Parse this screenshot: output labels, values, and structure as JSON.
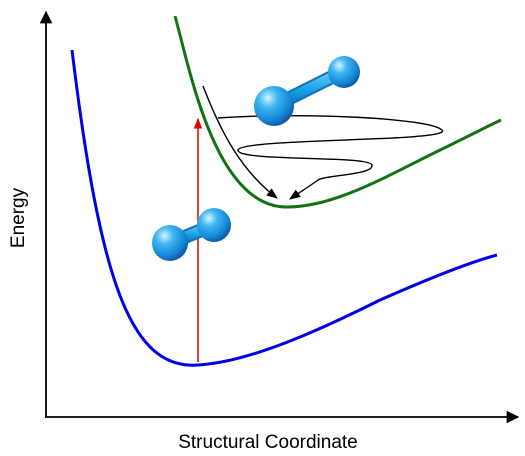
{
  "axes": {
    "xlabel": "Structural Coordinate",
    "ylabel": "Energy"
  },
  "colors": {
    "ground_curve": "#0000e6",
    "excited_curve": "#127312",
    "excitation_arrow": "#e60000",
    "relaxation_path": "#000000",
    "molecule": "#1aa3e8",
    "axes": "#000000"
  },
  "curves": [
    {
      "state": "ground"
    },
    {
      "state": "excited"
    }
  ],
  "molecules": [
    {
      "state": "ground-state geometry",
      "bond": "short"
    },
    {
      "state": "excited-state geometry",
      "bond": "long"
    }
  ]
}
